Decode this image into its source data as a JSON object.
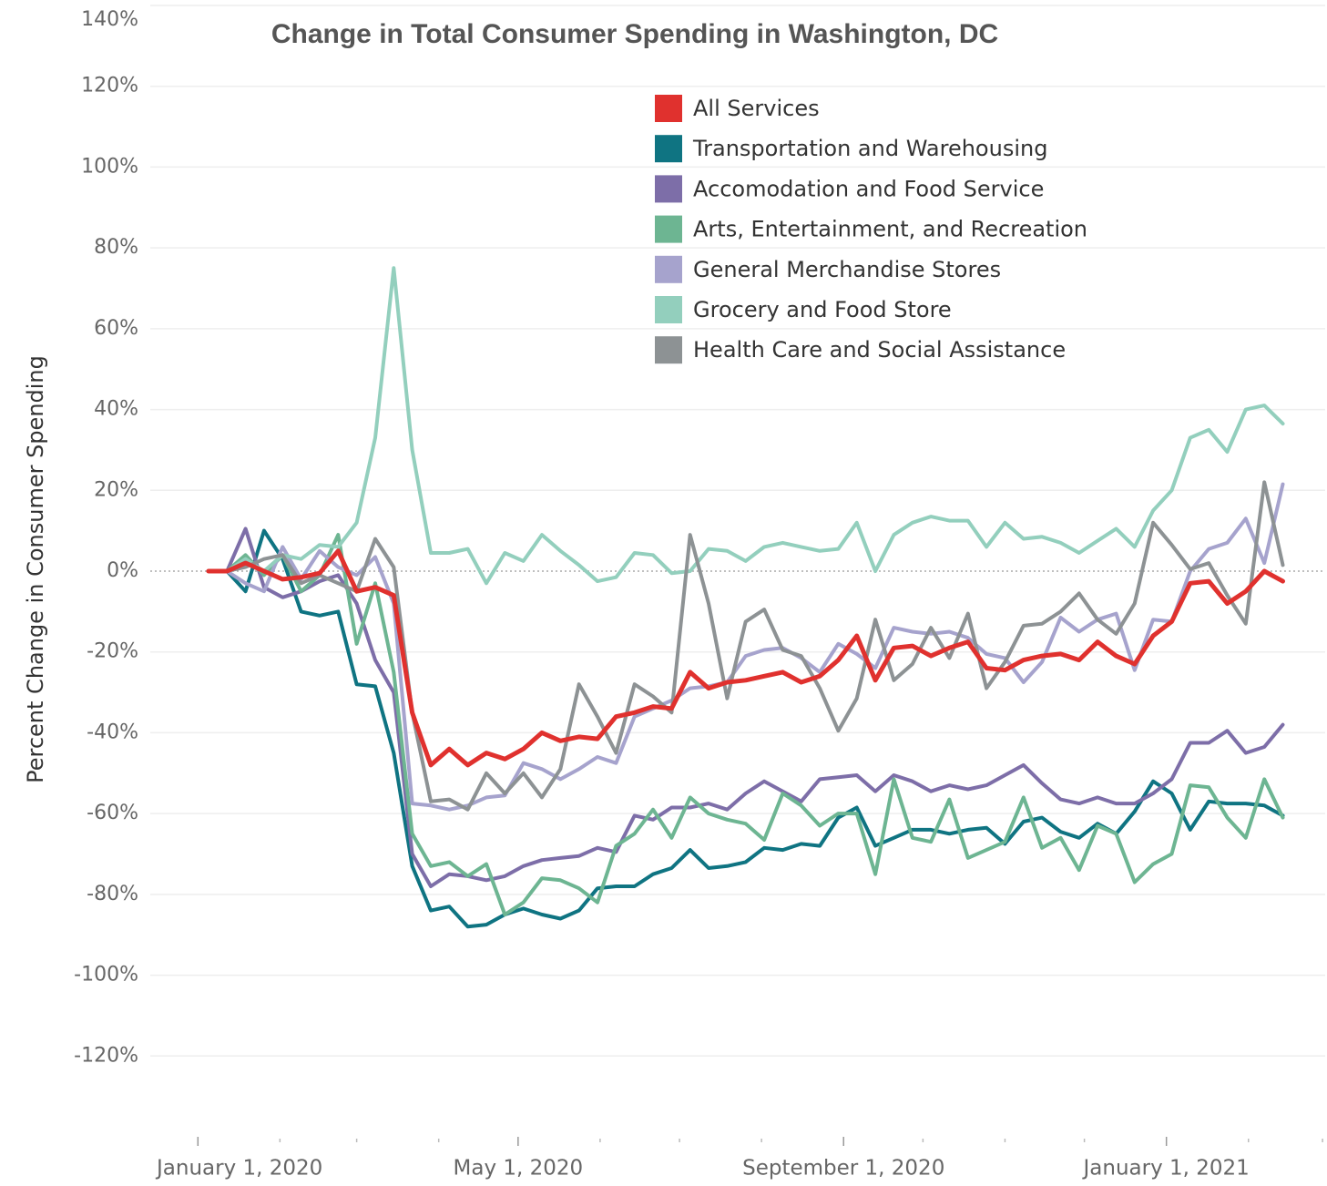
{
  "chart_data": {
    "type": "line",
    "title": "Change in Total Consumer Spending in Washington, DC",
    "y_label": "Percent Change in Consumer Spending",
    "x": [
      "2020-01-05",
      "2020-01-12",
      "2020-01-19",
      "2020-01-26",
      "2020-02-02",
      "2020-02-09",
      "2020-02-16",
      "2020-02-23",
      "2020-03-01",
      "2020-03-08",
      "2020-03-15",
      "2020-03-22",
      "2020-03-29",
      "2020-04-05",
      "2020-04-12",
      "2020-04-19",
      "2020-04-26",
      "2020-05-03",
      "2020-05-10",
      "2020-05-17",
      "2020-05-24",
      "2020-05-31",
      "2020-06-07",
      "2020-06-14",
      "2020-06-21",
      "2020-06-28",
      "2020-07-05",
      "2020-07-12",
      "2020-07-19",
      "2020-07-26",
      "2020-08-02",
      "2020-08-09",
      "2020-08-16",
      "2020-08-23",
      "2020-08-30",
      "2020-09-06",
      "2020-09-13",
      "2020-09-20",
      "2020-09-27",
      "2020-10-04",
      "2020-10-11",
      "2020-10-18",
      "2020-10-25",
      "2020-11-01",
      "2020-11-08",
      "2020-11-15",
      "2020-11-22",
      "2020-11-29",
      "2020-12-06",
      "2020-12-13",
      "2020-12-20",
      "2020-12-27",
      "2021-01-03",
      "2021-01-10",
      "2021-01-17",
      "2021-01-24",
      "2021-01-31",
      "2021-02-07",
      "2021-02-14"
    ],
    "series": [
      {
        "name": "All Services",
        "color": "#e0312e",
        "values": [
          0,
          0,
          2,
          0,
          -2,
          -1.5,
          -0.5,
          5,
          -5,
          -4,
          -6,
          -35,
          -48,
          -44,
          -48,
          -45,
          -46.5,
          -44,
          -40,
          -42,
          -41,
          -41.5,
          -36,
          -35,
          -33.5,
          -34,
          -25,
          -29,
          -27.5,
          -27,
          -26,
          -25,
          -27.5,
          -26,
          -22,
          -16,
          -27,
          -19,
          -18.5,
          -21,
          -19,
          -17.5,
          -24,
          -24.5,
          -22,
          -21,
          -20.5,
          -22,
          -17.5,
          -21,
          -23,
          -16,
          -12.5,
          -3,
          -2.5,
          -8,
          -5,
          0,
          -2.5
        ]
      },
      {
        "name": "Transportation and Warehousing",
        "color": "#0f7482",
        "values": [
          0,
          0,
          -5,
          10,
          3,
          -10,
          -11,
          -10,
          -28,
          -28.5,
          -45,
          -73,
          -84,
          -83,
          -88,
          -87.5,
          -85,
          -83.5,
          -85,
          -86,
          -84,
          -78.5,
          -78,
          -78,
          -75,
          -73.5,
          -69,
          -73.5,
          -73,
          -72,
          -68.5,
          -69,
          -67.5,
          -68,
          -61,
          -58.5,
          -68,
          -66,
          -64,
          -64,
          -65,
          -64,
          -63.5,
          -67.5,
          -62,
          -61,
          -64.5,
          -66,
          -62.5,
          -65,
          -59.5,
          -52,
          -55,
          -64,
          -57,
          -57.5,
          -57.5,
          -58,
          -60.5
        ]
      },
      {
        "name": "Accomodation and Food Service",
        "color": "#7d6ea8",
        "values": [
          0,
          0,
          10.5,
          -4,
          -6.5,
          -5,
          -2.5,
          -1,
          -8,
          -22,
          -30,
          -70,
          -78,
          -75,
          -75.5,
          -76.5,
          -75.5,
          -73,
          -71.5,
          -71,
          -70.5,
          -68.5,
          -69.5,
          -60.5,
          -61.5,
          -58.5,
          -58.5,
          -57.5,
          -59,
          -55,
          -52,
          -54.5,
          -57,
          -51.5,
          -51,
          -50.5,
          -54.5,
          -50.5,
          -52,
          -54.5,
          -53,
          -54,
          -53,
          -50.5,
          -48,
          -52.5,
          -56.5,
          -57.5,
          -56,
          -57.5,
          -57.5,
          -55,
          -51.5,
          -42.5,
          -42.5,
          -39.5,
          -45,
          -43.5,
          -38
        ]
      },
      {
        "name": "Arts, Entertainment, and Recreation",
        "color": "#6db592",
        "values": [
          0,
          0,
          4,
          -1,
          4,
          -5,
          -1,
          9,
          -18,
          -3,
          -25,
          -65,
          -73,
          -72,
          -75.5,
          -72.5,
          -85,
          -82,
          -76,
          -76.5,
          -78.5,
          -82,
          -68,
          -65,
          -59,
          -66,
          -56,
          -60,
          -61.5,
          -62.5,
          -66.5,
          -55,
          -58,
          -63,
          -60,
          -60,
          -75,
          -51.5,
          -66,
          -67,
          -56.5,
          -71,
          -69,
          -67,
          -56,
          -68.5,
          -66,
          -74,
          -63,
          -65,
          -77,
          -72.5,
          -70,
          -53,
          -53.5,
          -61,
          -66,
          -51.5,
          -61
        ]
      },
      {
        "name": "General Merchandise Stores",
        "color": "#a6a3cd",
        "values": [
          0,
          0,
          -3,
          -5,
          6,
          -2,
          5,
          1,
          -1,
          3.5,
          -8,
          -57.5,
          -58,
          -59,
          -58,
          -56,
          -55.5,
          -47.5,
          -49,
          -51.5,
          -49,
          -46,
          -47.5,
          -36,
          -34,
          -32,
          -29,
          -28.5,
          -27.5,
          -21,
          -19.5,
          -19,
          -21.5,
          -25,
          -18,
          -20.5,
          -24,
          -14,
          -15,
          -15.5,
          -15,
          -16.5,
          -20.5,
          -21.5,
          -27.5,
          -22.5,
          -11.5,
          -15,
          -12,
          -10.5,
          -24.5,
          -12,
          -12.5,
          0,
          5.5,
          7,
          13,
          2,
          21.5
        ]
      },
      {
        "name": "Grocery and Food Store",
        "color": "#93cfbd",
        "values": [
          0,
          0,
          3,
          0,
          4,
          3,
          6.5,
          6,
          12,
          33,
          75,
          30,
          4.5,
          4.5,
          5.5,
          -3,
          4.5,
          2.5,
          9,
          5,
          1.5,
          -2.5,
          -1.5,
          4.5,
          4,
          -0.5,
          0,
          5.5,
          5,
          2.5,
          6,
          7,
          6,
          5,
          5.5,
          12,
          0,
          9,
          12,
          13.5,
          12.5,
          12.5,
          6,
          12,
          8,
          8.5,
          7,
          4.5,
          7.5,
          10.5,
          6,
          15,
          20,
          33,
          35,
          29.5,
          40,
          41,
          36.5
        ]
      },
      {
        "name": "Health Care and Social Assistance",
        "color": "#8d9294",
        "values": [
          0,
          0,
          1,
          3,
          4,
          -3,
          -1,
          -3,
          -5,
          8,
          1,
          -35,
          -57,
          -56.5,
          -59,
          -50,
          -55,
          -50,
          -56,
          -49,
          -28,
          -36,
          -45,
          -28,
          -31,
          -35,
          9,
          -8,
          -31.5,
          -12.5,
          -9.5,
          -19.5,
          -21,
          -29,
          -39.5,
          -31.5,
          -12,
          -27,
          -23,
          -14,
          -21.5,
          -10.5,
          -29,
          -22.5,
          -13.5,
          -13,
          -10,
          -5.5,
          -12,
          -15.5,
          -8,
          12,
          6.5,
          0.5,
          2,
          -6,
          -13,
          22,
          1.5
        ]
      }
    ],
    "xlim": [
      "2019-12-14",
      "2021-03-02"
    ],
    "xticks": [
      {
        "value": "2020-01-01",
        "label": "January 1, 2020"
      },
      {
        "value": "2020-05-01",
        "label": "May 1, 2020"
      },
      {
        "value": "2020-09-01",
        "label": "September 1, 2020"
      },
      {
        "value": "2021-01-01",
        "label": "January 1, 2021"
      }
    ],
    "xticks_minor": [
      "2020-02-01",
      "2020-03-01",
      "2020-04-01",
      "2020-06-01",
      "2020-07-01",
      "2020-08-01",
      "2020-10-01",
      "2020-11-01",
      "2020-12-01",
      "2021-02-01",
      "2021-03-01"
    ],
    "ylim": [
      -140,
      140
    ],
    "yticks": [
      {
        "value": 140,
        "label": "140%"
      },
      {
        "value": 120,
        "label": "120%"
      },
      {
        "value": 100,
        "label": "100%"
      },
      {
        "value": 80,
        "label": "80%"
      },
      {
        "value": 60,
        "label": "60%"
      },
      {
        "value": 40,
        "label": "40%"
      },
      {
        "value": 20,
        "label": "20%"
      },
      {
        "value": 0,
        "label": "0%"
      },
      {
        "value": -20,
        "label": "-20%"
      },
      {
        "value": -40,
        "label": "-40%"
      },
      {
        "value": -60,
        "label": "-60%"
      },
      {
        "value": -80,
        "label": "-80%"
      },
      {
        "value": -100,
        "label": "-100%"
      },
      {
        "value": -120,
        "label": "-120%"
      }
    ],
    "grid": true,
    "legend": "top"
  }
}
